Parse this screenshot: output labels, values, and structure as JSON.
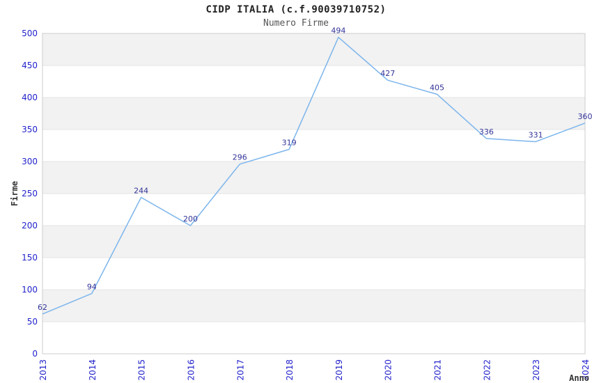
{
  "header": {
    "title": "CIDP ITALIA (c.f.90039710752)",
    "subtitle": "Numero Firme"
  },
  "colors": {
    "line": "#7cb5ec",
    "tick_label": "#2222cc",
    "data_label": "#333399",
    "band": "#f2f2f2",
    "grid": "#e4e4e4",
    "plot_border": "#cccccc",
    "title": "#222222",
    "subtitle": "#555555",
    "axis_title": "#333333",
    "background": "#ffffff"
  },
  "chart_data": {
    "type": "line",
    "title": "CIDP ITALIA (c.f.90039710752)",
    "subtitle": "Numero Firme",
    "x": [
      2013,
      2014,
      2015,
      2016,
      2017,
      2018,
      2019,
      2020,
      2021,
      2022,
      2023,
      2024
    ],
    "values": [
      62,
      94,
      244,
      200,
      296,
      319,
      494,
      427,
      405,
      336,
      331,
      360
    ],
    "xlabel": "Anno",
    "ylabel": "Firme",
    "ylim": [
      0,
      500
    ],
    "ytick_step": 50,
    "yticks": [
      0,
      50,
      100,
      150,
      200,
      250,
      300,
      350,
      400,
      450,
      500
    ],
    "grid": true,
    "alternating_bands": true,
    "markers": false,
    "data_labels": true,
    "legend_position": "none",
    "x_tick_rotation": -90
  }
}
